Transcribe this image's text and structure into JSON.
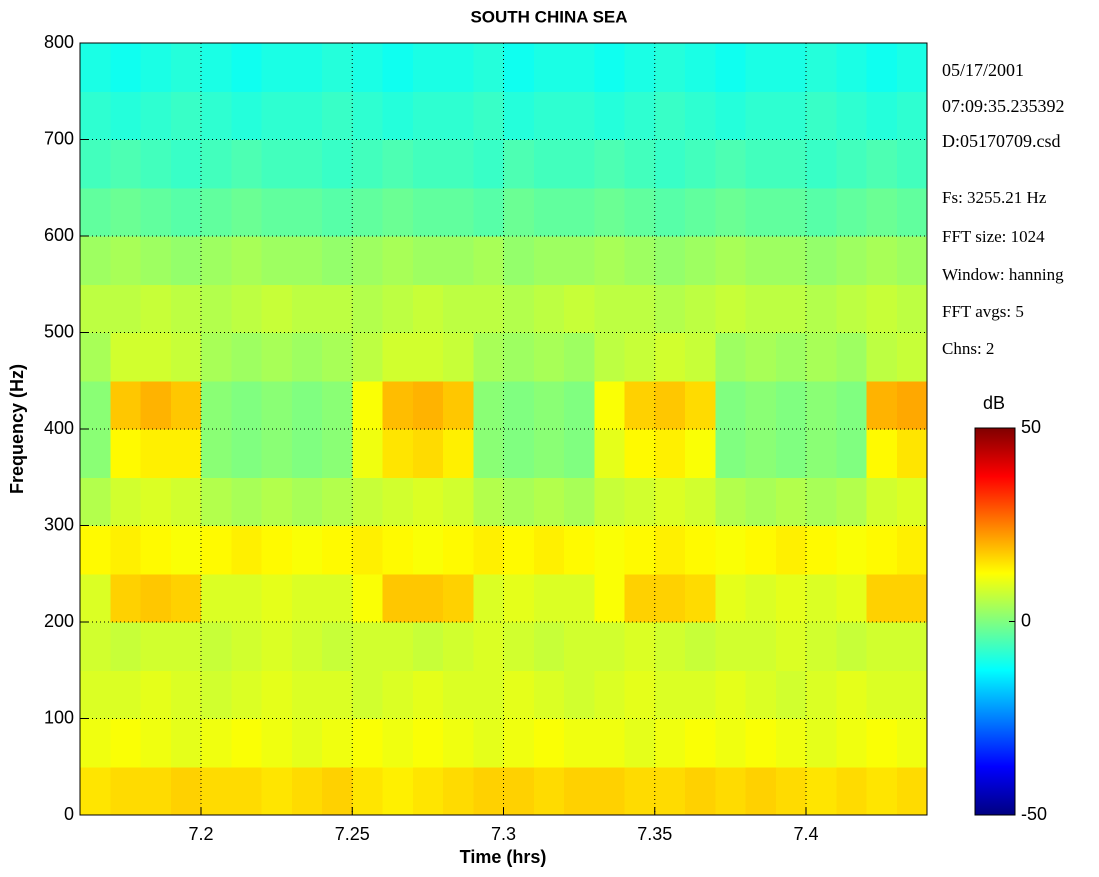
{
  "chart_data": {
    "type": "heatmap",
    "title": "SOUTH CHINA SEA",
    "x_label": "Time (hrs)",
    "y_label": "Frequency (Hz)",
    "colormap": "jet",
    "colorbar_label": "dB",
    "clim": [
      -50,
      50
    ],
    "cticks": [
      -50,
      0,
      50
    ],
    "xlim": [
      7.16,
      7.44
    ],
    "xticks": [
      7.2,
      7.25,
      7.3,
      7.35,
      7.4
    ],
    "ylim": [
      0,
      800
    ],
    "yticks": [
      0,
      100,
      200,
      300,
      400,
      500,
      600,
      700,
      800
    ],
    "grid": true,
    "x_edges": [
      7.16,
      7.17,
      7.18,
      7.19,
      7.2,
      7.21,
      7.22,
      7.23,
      7.24,
      7.25,
      7.26,
      7.27,
      7.28,
      7.29,
      7.3,
      7.31,
      7.32,
      7.33,
      7.34,
      7.35,
      7.36,
      7.37,
      7.38,
      7.39,
      7.4,
      7.41,
      7.42,
      7.43,
      7.44
    ],
    "y_edges": [
      0,
      50,
      100,
      150,
      200,
      250,
      300,
      350,
      400,
      450,
      500,
      550,
      600,
      650,
      700,
      750,
      800
    ],
    "z": [
      [
        15,
        16,
        16,
        17,
        16,
        16,
        15,
        16,
        17,
        15,
        14,
        15,
        16,
        17,
        17,
        16,
        17,
        17,
        16,
        16,
        17,
        16,
        17,
        16,
        15,
        16,
        15,
        16
      ],
      [
        11,
        12,
        11,
        10,
        11,
        12,
        11,
        10,
        11,
        12,
        11,
        12,
        11,
        10,
        11,
        12,
        11,
        11,
        10,
        11,
        12,
        11,
        12,
        11,
        10,
        11,
        12,
        11
      ],
      [
        9,
        9,
        10,
        9,
        8,
        9,
        10,
        9,
        9,
        8,
        9,
        10,
        9,
        9,
        10,
        9,
        8,
        9,
        10,
        9,
        9,
        10,
        9,
        8,
        9,
        10,
        9,
        9
      ],
      [
        8,
        7,
        8,
        8,
        7,
        8,
        9,
        8,
        7,
        8,
        8,
        7,
        8,
        9,
        8,
        7,
        8,
        8,
        9,
        8,
        7,
        8,
        8,
        9,
        8,
        7,
        8,
        8
      ],
      [
        9,
        17,
        18,
        17,
        9,
        9,
        10,
        9,
        9,
        12,
        18,
        18,
        17,
        9,
        10,
        9,
        9,
        12,
        17,
        17,
        16,
        10,
        9,
        10,
        9,
        10,
        17,
        17
      ],
      [
        13,
        14,
        13,
        12,
        13,
        14,
        13,
        12,
        13,
        14,
        13,
        12,
        13,
        14,
        13,
        14,
        13,
        12,
        13,
        14,
        13,
        12,
        13,
        14,
        13,
        12,
        13,
        14
      ],
      [
        5,
        8,
        9,
        8,
        5,
        4,
        5,
        4,
        5,
        7,
        8,
        9,
        8,
        5,
        4,
        5,
        4,
        7,
        8,
        9,
        8,
        5,
        4,
        5,
        4,
        5,
        8,
        9
      ],
      [
        1,
        13,
        14,
        14,
        1,
        0,
        1,
        0,
        1,
        11,
        15,
        16,
        14,
        1,
        0,
        1,
        0,
        10,
        13,
        14,
        12,
        0,
        1,
        0,
        1,
        0,
        13,
        15
      ],
      [
        1,
        18,
        20,
        18,
        1,
        0,
        1,
        0,
        1,
        12,
        19,
        20,
        18,
        1,
        0,
        1,
        0,
        12,
        17,
        18,
        16,
        0,
        1,
        0,
        1,
        0,
        20,
        21
      ],
      [
        4,
        8,
        8,
        7,
        4,
        3,
        4,
        3,
        4,
        6,
        8,
        8,
        7,
        4,
        3,
        4,
        3,
        6,
        7,
        8,
        7,
        3,
        4,
        3,
        4,
        3,
        6,
        7
      ],
      [
        6,
        6,
        7,
        6,
        5,
        6,
        7,
        6,
        6,
        5,
        6,
        7,
        6,
        6,
        5,
        6,
        7,
        6,
        6,
        5,
        6,
        7,
        6,
        6,
        5,
        6,
        7,
        6
      ],
      [
        3,
        4,
        3,
        2,
        3,
        4,
        3,
        3,
        2,
        3,
        4,
        3,
        3,
        4,
        2,
        3,
        3,
        4,
        3,
        2,
        3,
        4,
        3,
        3,
        2,
        3,
        4,
        3
      ],
      [
        -3,
        -2,
        -3,
        -4,
        -3,
        -2,
        -3,
        -3,
        -4,
        -3,
        -2,
        -3,
        -3,
        -4,
        -2,
        -3,
        -3,
        -2,
        -3,
        -4,
        -3,
        -2,
        -3,
        -3,
        -4,
        -3,
        -2,
        -3
      ],
      [
        -6,
        -5,
        -6,
        -7,
        -6,
        -5,
        -6,
        -6,
        -7,
        -6,
        -5,
        -6,
        -6,
        -7,
        -5,
        -6,
        -6,
        -5,
        -6,
        -7,
        -6,
        -5,
        -6,
        -6,
        -7,
        -6,
        -5,
        -6
      ],
      [
        -8,
        -9,
        -8,
        -7,
        -8,
        -9,
        -8,
        -8,
        -7,
        -8,
        -9,
        -8,
        -8,
        -7,
        -9,
        -8,
        -8,
        -9,
        -8,
        -7,
        -8,
        -9,
        -8,
        -8,
        -7,
        -8,
        -9,
        -8
      ],
      [
        -10,
        -11,
        -10,
        -9,
        -10,
        -11,
        -10,
        -10,
        -9,
        -10,
        -11,
        -10,
        -10,
        -9,
        -11,
        -10,
        -10,
        -11,
        -10,
        -9,
        -10,
        -11,
        -10,
        -10,
        -9,
        -10,
        -11,
        -10
      ]
    ],
    "annotations": [
      "05/17/2001",
      "07:09:35.235392",
      "D:05170709.csd",
      "Fs: 3255.21 Hz",
      "FFT size: 1024",
      "Window: hanning",
      "FFT avgs: 5",
      "Chns: 2"
    ]
  }
}
